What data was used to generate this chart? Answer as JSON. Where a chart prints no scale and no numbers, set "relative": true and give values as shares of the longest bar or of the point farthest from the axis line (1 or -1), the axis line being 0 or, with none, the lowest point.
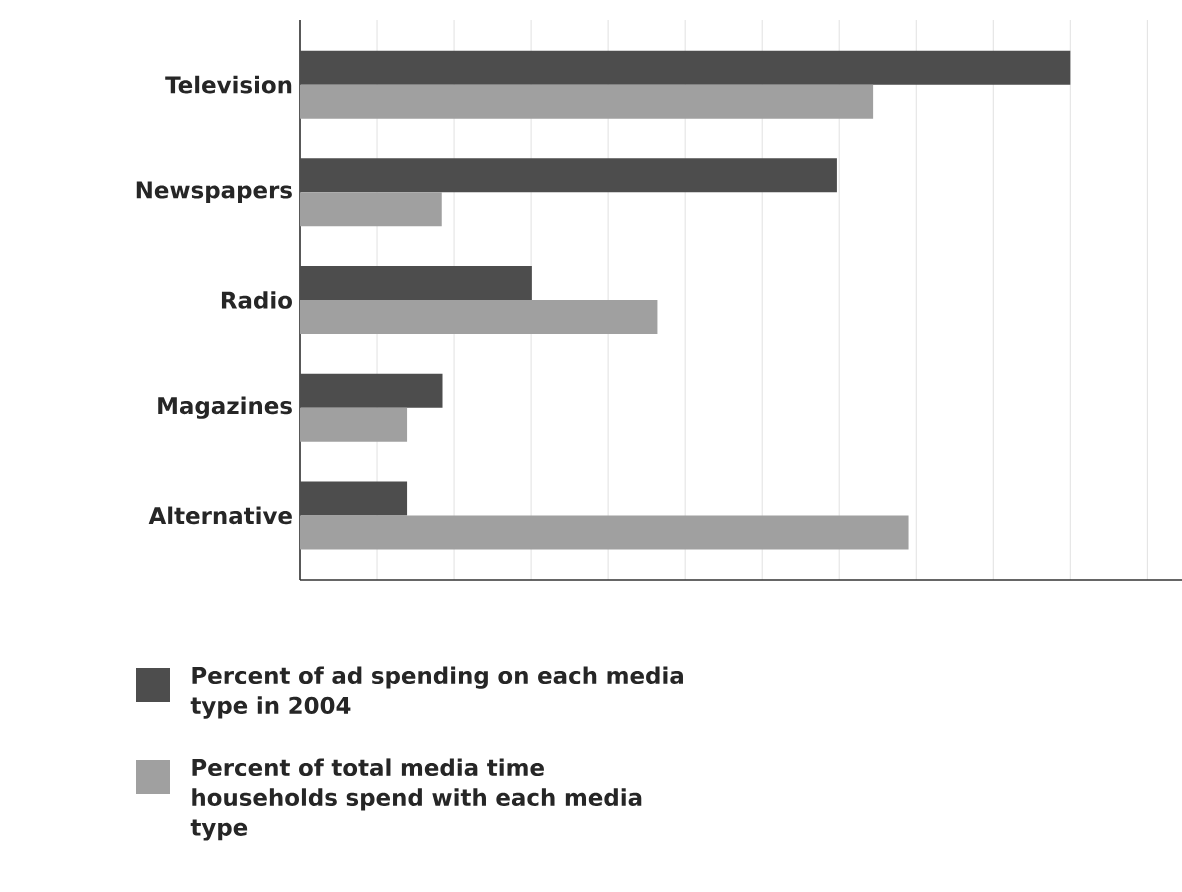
{
  "chart_data": {
    "type": "bar",
    "orientation": "horizontal",
    "relative": true,
    "grid": "x",
    "legend": "bottom",
    "categories": [
      "Television",
      "Newspapers",
      "Radio",
      "Magazines",
      "Alternative"
    ],
    "series": [
      {
        "name": "Percent of ad spending on each media type in 2004",
        "color": "#4d4d4d",
        "values": [
          1,
          0.697,
          0.301,
          0.185,
          0.139
        ]
      },
      {
        "name": "Percent of total media time households spend with each media type",
        "color": "#a0a0a0",
        "values": [
          0.744,
          0.184,
          0.464,
          0.139,
          0.79
        ]
      }
    ]
  }
}
